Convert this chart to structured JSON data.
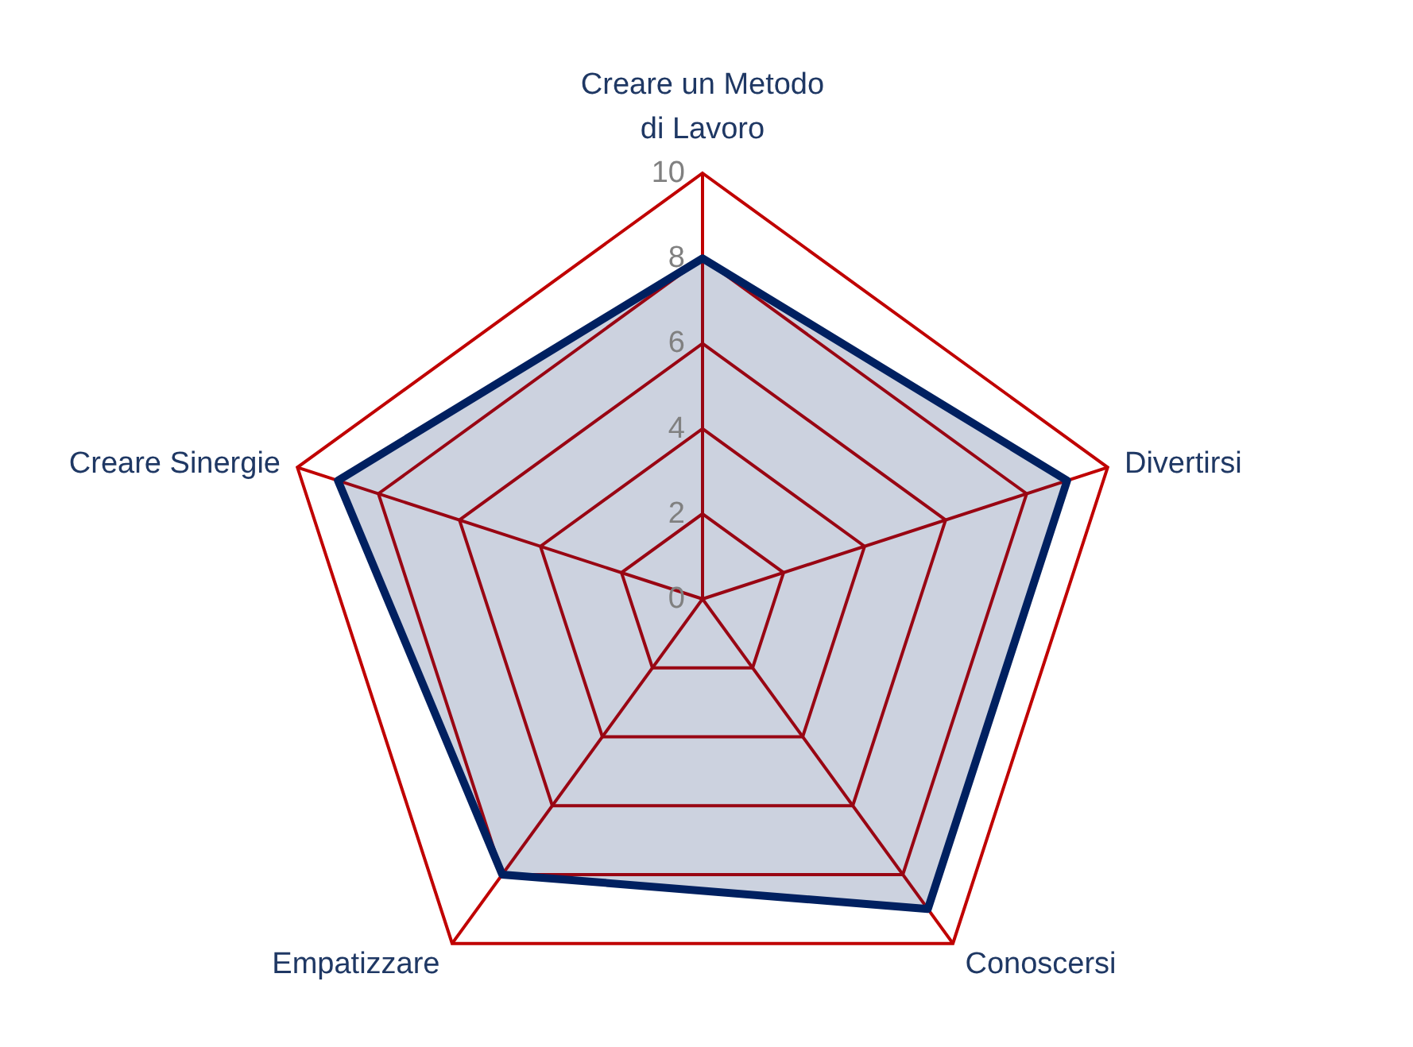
{
  "chart_data": {
    "type": "radar",
    "categories": [
      "Creare un Metodo di Lavoro",
      "Divertirsi",
      "Conoscersi",
      "Empatizzare",
      "Creare Sinergie"
    ],
    "series": [
      {
        "color": "#002060",
        "values": [
          8,
          9,
          9,
          8,
          9
        ]
      }
    ],
    "ylim": [
      0,
      10
    ],
    "yticks": [
      0,
      2,
      4,
      6,
      8,
      10
    ],
    "grid": true
  }
}
